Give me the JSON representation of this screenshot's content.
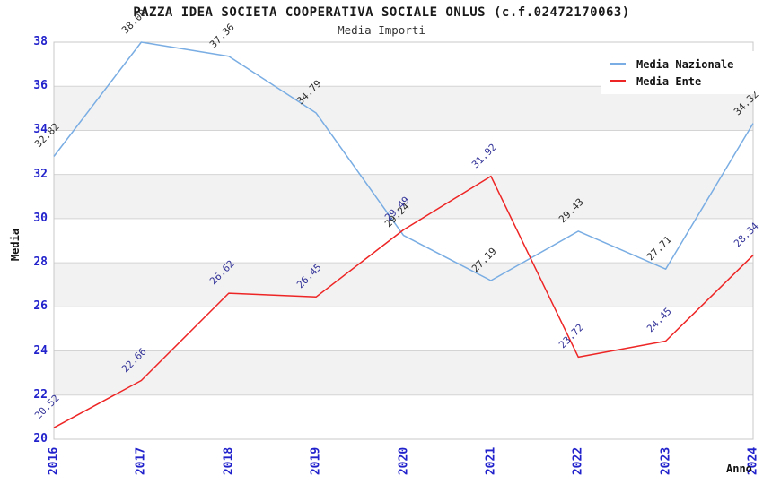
{
  "header": {
    "title": "PAZZA IDEA SOCIETA COOPERATIVA SOCIALE ONLUS (c.f.02472170063)",
    "subtitle": "Media Importi"
  },
  "chart_data": {
    "type": "line",
    "title": "PAZZA IDEA SOCIETA COOPERATIVA SOCIALE ONLUS (c.f.02472170063)",
    "subtitle": "Media Importi",
    "xlabel": "Anno",
    "ylabel": "Media",
    "x_categories": [
      "2016",
      "2017",
      "2018",
      "2019",
      "2020",
      "2021",
      "2022",
      "2023",
      "2024"
    ],
    "ylim": [
      20,
      38
    ],
    "ytick_step": 2,
    "grid": "horizontal gridlines with alternating gray/white bands",
    "legend_position": "top-right",
    "series": [
      {
        "name": "Media Nazionale",
        "color": "#79ADE3",
        "label_color": "#2B2B2B",
        "values": [
          32.82,
          38.0,
          37.36,
          34.79,
          29.24,
          27.19,
          29.43,
          27.71,
          34.32
        ]
      },
      {
        "name": "Media Ente",
        "color": "#EE2525",
        "label_color": "#333399",
        "values": [
          20.52,
          22.66,
          26.62,
          26.45,
          29.49,
          31.92,
          23.72,
          24.45,
          28.34
        ]
      }
    ]
  },
  "colors": {
    "tick_label": "#2222CC",
    "band_gray": "#F2F2F2",
    "gridline": "#D4D4D4",
    "frame": "#C8C8C8",
    "axis_title": "#111111"
  }
}
